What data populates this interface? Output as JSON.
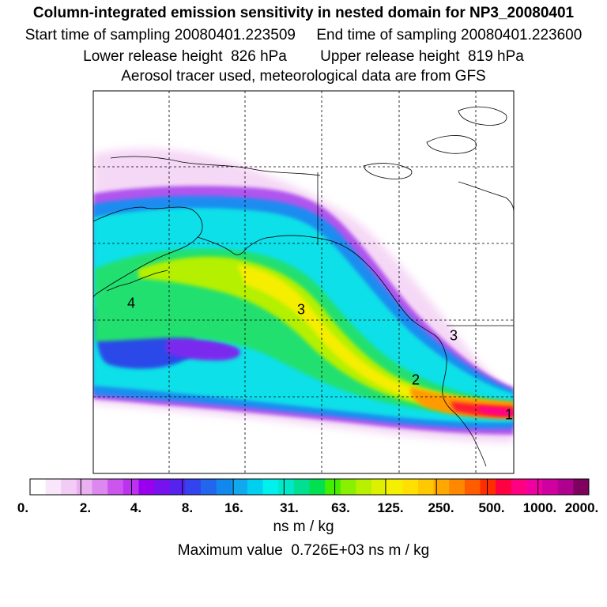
{
  "header": {
    "title": "Column-integrated emission sensitivity in nested domain for NP3_20080401",
    "start_label": "Start time of sampling 20080401.223509",
    "end_label": "End time of sampling 20080401.223600",
    "lower_label": "Lower release height  826 hPa",
    "upper_label": "Upper release height  819 hPa",
    "note": "Aerosol tracer used, meteorological data are from GFS"
  },
  "map": {
    "labels": [
      {
        "id": "1",
        "text": "1"
      },
      {
        "id": "2",
        "text": "2"
      },
      {
        "id": "3",
        "text": "3"
      },
      {
        "id": "4",
        "text": "4"
      },
      {
        "id": "5",
        "text": "3"
      }
    ]
  },
  "colorbar": {
    "ticks": [
      "0.",
      "2.",
      "4.",
      "8.",
      "16.",
      "31.",
      "63.",
      "125.",
      "250.",
      "500.",
      "1000.",
      "2000."
    ],
    "colors": [
      "#ffffff",
      "#fae6fa",
      "#f2ccf5",
      "#eab0f0",
      "#dd88ee",
      "#cc55ee",
      "#bb33ee",
      "#9900ee",
      "#7711ee",
      "#5522ee",
      "#3344ee",
      "#2266ee",
      "#1188ee",
      "#11a8f0",
      "#00cff0",
      "#00f0ee",
      "#00e8c8",
      "#00e090",
      "#00e050",
      "#44ee00",
      "#88f000",
      "#b8f000",
      "#ddf000",
      "#f5f000",
      "#ffe000",
      "#ffc800",
      "#ffa800",
      "#ff8800",
      "#ff5c00",
      "#ff2e00",
      "#ff0040",
      "#ff0080",
      "#f000a0",
      "#d000a0",
      "#b00090",
      "#800060"
    ],
    "unit": "ns m / kg"
  },
  "footer": {
    "max_value": "Maximum value  0.726E+03 ns m / kg"
  }
}
